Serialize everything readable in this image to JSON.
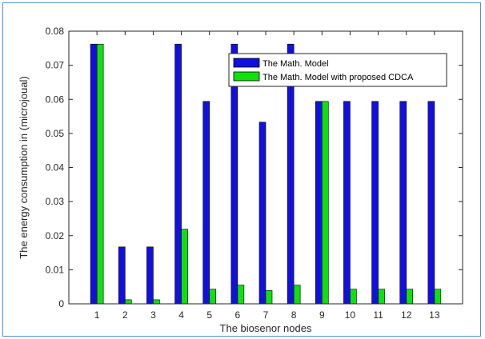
{
  "chart_data": {
    "type": "bar",
    "title": "",
    "xlabel": "The biosenor nodes",
    "ylabel": "The energy consumption in (microjoual)",
    "categories": [
      "1",
      "2",
      "3",
      "4",
      "5",
      "6",
      "7",
      "8",
      "9",
      "10",
      "11",
      "12",
      "13"
    ],
    "ylim": [
      0,
      0.08
    ],
    "yticks": [
      "0",
      "0.01",
      "0.02",
      "0.03",
      "0.04",
      "0.05",
      "0.06",
      "0.07",
      "0.08"
    ],
    "grid": false,
    "legend_position": "top-right",
    "series": [
      {
        "name": "The Math. Model",
        "color": "#1010e0",
        "values": [
          0.0762,
          0.0167,
          0.0167,
          0.0762,
          0.0594,
          0.0762,
          0.0533,
          0.0762,
          0.0594,
          0.0594,
          0.0594,
          0.0594,
          0.0594
        ]
      },
      {
        "name": "The Math. Model with proposed CDCA",
        "color": "#10e010",
        "values": [
          0.0762,
          0.0012,
          0.0012,
          0.0219,
          0.0043,
          0.0055,
          0.0039,
          0.0055,
          0.0594,
          0.0043,
          0.0043,
          0.0043,
          0.0043
        ]
      }
    ]
  }
}
